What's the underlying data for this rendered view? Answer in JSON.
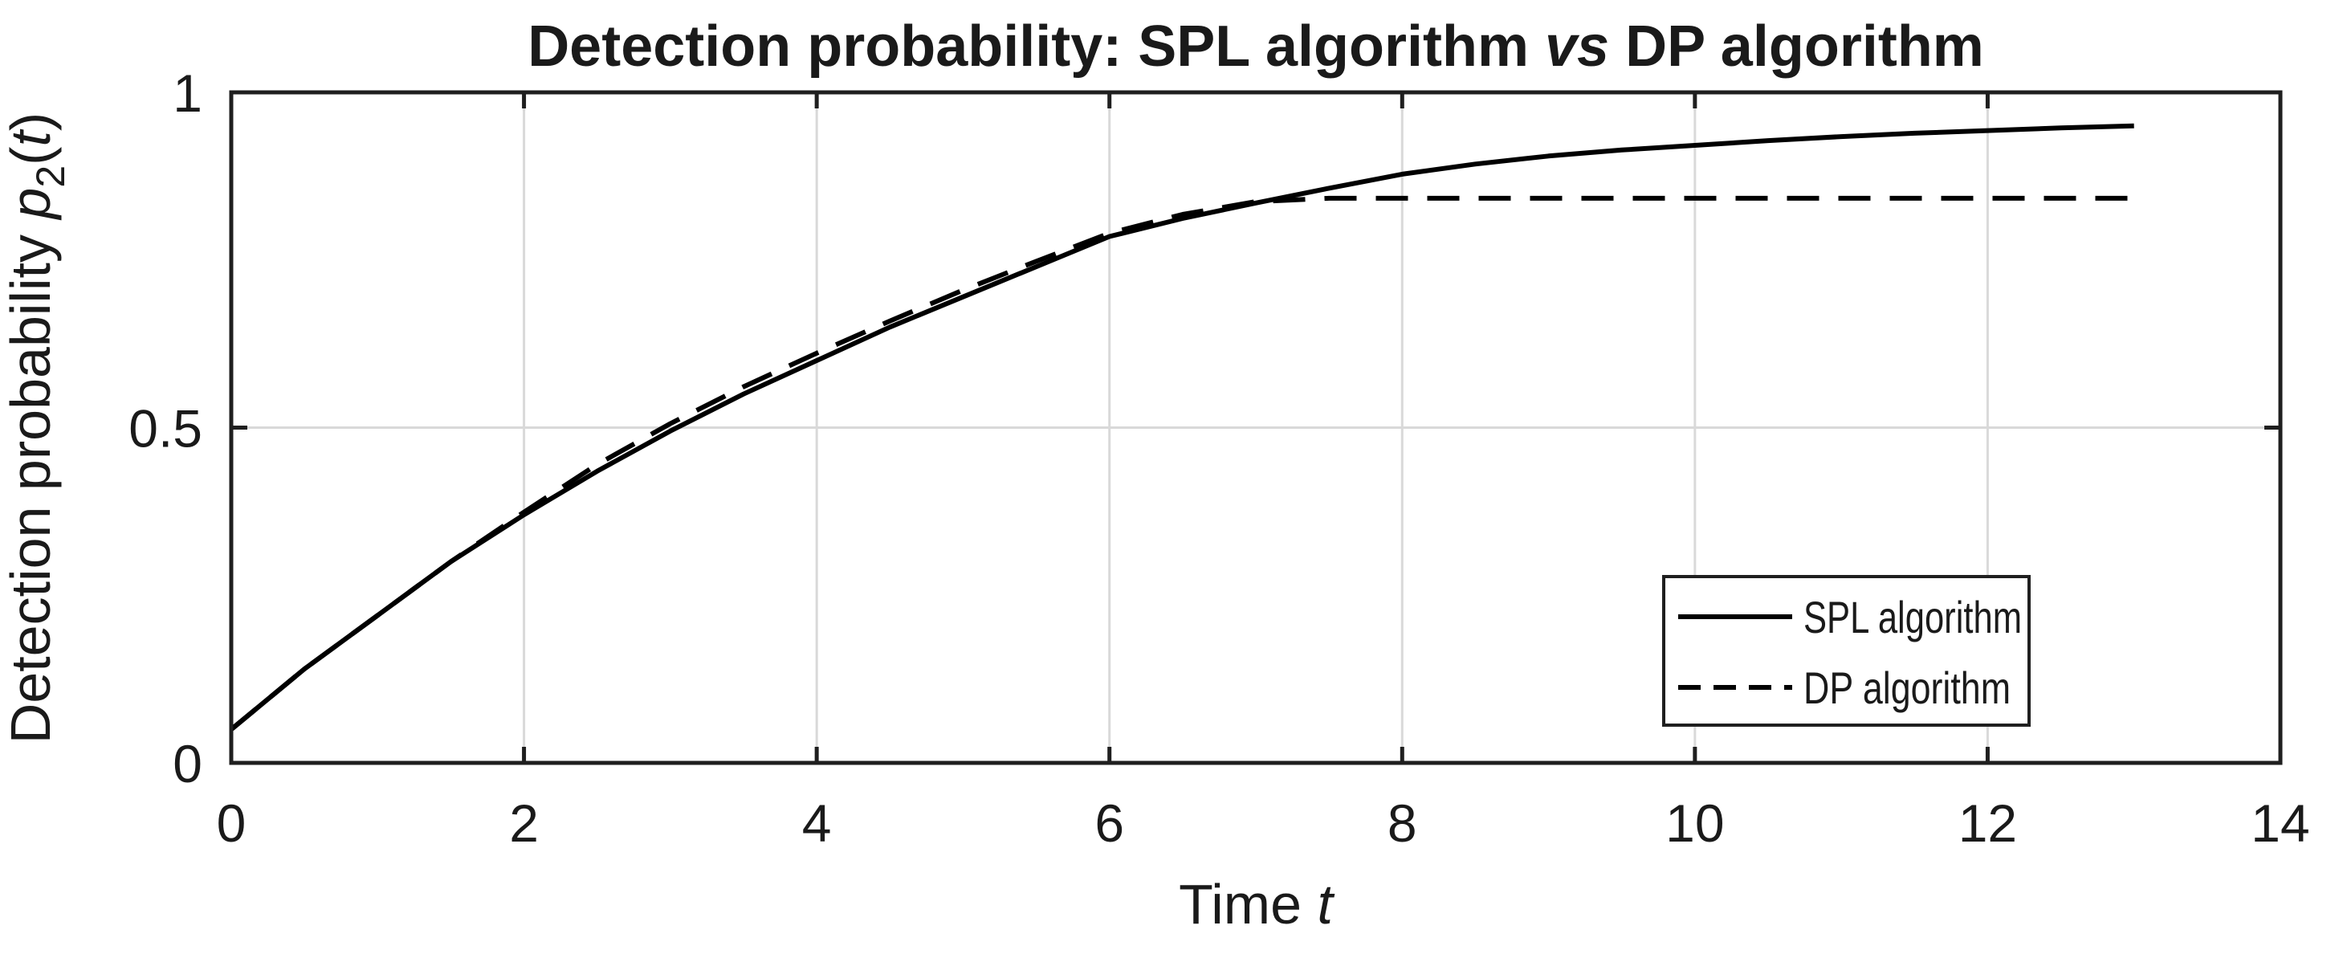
{
  "figure": {
    "background": "#ffffff",
    "title": {
      "pre": "Detection probability: SPL algorithm ",
      "vs": "vs",
      "post": " DP algorithm"
    },
    "x_axis": {
      "label_pre": "Time ",
      "label_var": "t"
    },
    "y_axis": {
      "label_pre": "Detection probability ",
      "label_var": "p",
      "label_sub": "2",
      "label_open": "(",
      "label_t": "t",
      "label_close": ")"
    },
    "legend": {
      "entries": [
        {
          "label": "SPL algorithm",
          "style": "solid"
        },
        {
          "label": "DP algorithm",
          "style": "dashed"
        }
      ]
    },
    "colors": {
      "line": "#000000",
      "axis": "#1f1f1f",
      "grid": "#d9d9d9",
      "background": "#ffffff"
    }
  },
  "chart_data": {
    "type": "line",
    "title": "Detection probability: SPL algorithm vs DP algorithm",
    "xlabel": "Time t",
    "ylabel": "Detection probability p_2(t)",
    "xlim": [
      0,
      14
    ],
    "ylim": [
      0,
      1
    ],
    "x_ticks": [
      0,
      2,
      4,
      6,
      8,
      10,
      12,
      14
    ],
    "x_tick_labels": [
      "0",
      "2",
      "4",
      "6",
      "8",
      "10",
      "12",
      "14"
    ],
    "y_ticks": [
      0,
      0.5,
      1
    ],
    "y_tick_labels": [
      "0",
      "0.5",
      "1"
    ],
    "grid": true,
    "legend_position": "lower right",
    "x": [
      0,
      0.5,
      1,
      1.5,
      2,
      2.5,
      3,
      3.5,
      4,
      4.5,
      5,
      5.5,
      6,
      6.5,
      7,
      7.5,
      8,
      8.5,
      9,
      9.5,
      10,
      10.5,
      11,
      11.5,
      12,
      12.5,
      13
    ],
    "series": [
      {
        "name": "SPL algorithm",
        "style": "solid",
        "values": [
          0.05,
          0.14,
          0.22,
          0.3,
          0.37,
          0.435,
          0.495,
          0.55,
          0.6,
          0.65,
          0.695,
          0.74,
          0.785,
          0.812,
          0.835,
          0.857,
          0.878,
          0.893,
          0.905,
          0.914,
          0.921,
          0.928,
          0.934,
          0.939,
          0.943,
          0.947,
          0.95
        ]
      },
      {
        "name": "DP algorithm",
        "style": "dashed",
        "values": [
          0.05,
          0.14,
          0.22,
          0.3,
          0.374,
          0.445,
          0.506,
          0.561,
          0.611,
          0.659,
          0.705,
          0.748,
          0.79,
          0.818,
          0.837,
          0.842,
          0.842,
          0.842,
          0.842,
          0.842,
          0.842,
          0.842,
          0.842,
          0.842,
          0.842,
          0.842,
          0.842
        ]
      }
    ]
  }
}
